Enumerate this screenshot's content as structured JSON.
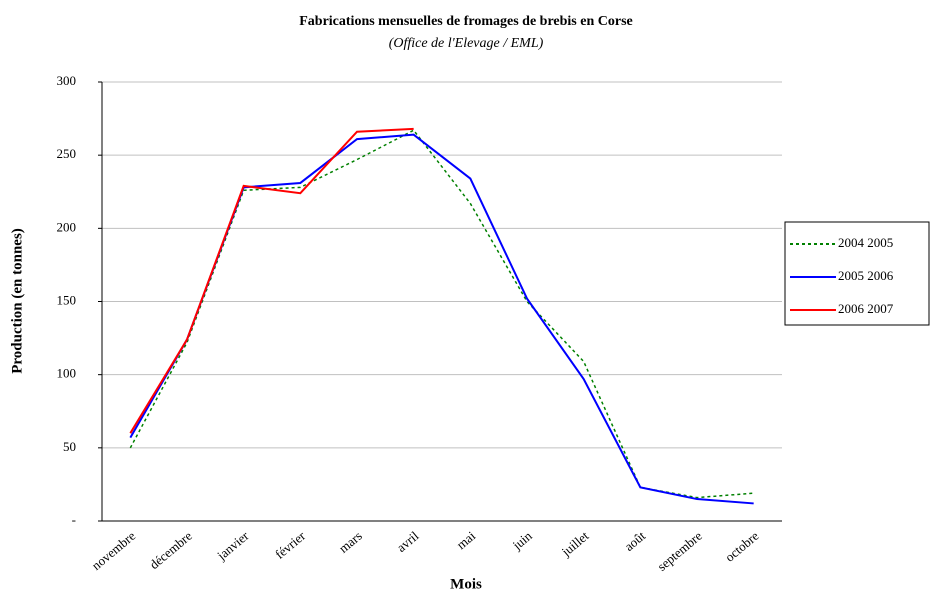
{
  "chart_data": {
    "type": "line",
    "title": "Fabrications mensuelles de fromages de brebis en Corse",
    "subtitle": "(Office de l'Elevage / EML)",
    "x_label": "Mois",
    "y_label": "Production (en tonnes)",
    "categories": [
      "novembre",
      "décembre",
      "janvier",
      "février",
      "mars",
      "avril",
      "mai",
      "juin",
      "juillet",
      "août",
      "septembre",
      "octobre"
    ],
    "series": [
      {
        "name": "2004 2005",
        "color": "#008000",
        "style": "dotted",
        "values": [
          50,
          122,
          226,
          228,
          247,
          267,
          217,
          150,
          109,
          23,
          16,
          19
        ]
      },
      {
        "name": "2005 2006",
        "color": "#0000ff",
        "style": "solid",
        "values": [
          57,
          124,
          228,
          231,
          261,
          264,
          234,
          152,
          97,
          23,
          15,
          12
        ]
      },
      {
        "name": "2006 2007",
        "color": "#ff0000",
        "style": "solid",
        "values": [
          60,
          124,
          229,
          224,
          266,
          268,
          null,
          null,
          null,
          null,
          null,
          null
        ]
      }
    ],
    "ylim": [
      0,
      300
    ],
    "yticks": [
      {
        "value": 0,
        "label": "-"
      },
      50,
      100,
      150,
      200,
      250,
      300
    ],
    "grid": true,
    "legend": "right"
  }
}
